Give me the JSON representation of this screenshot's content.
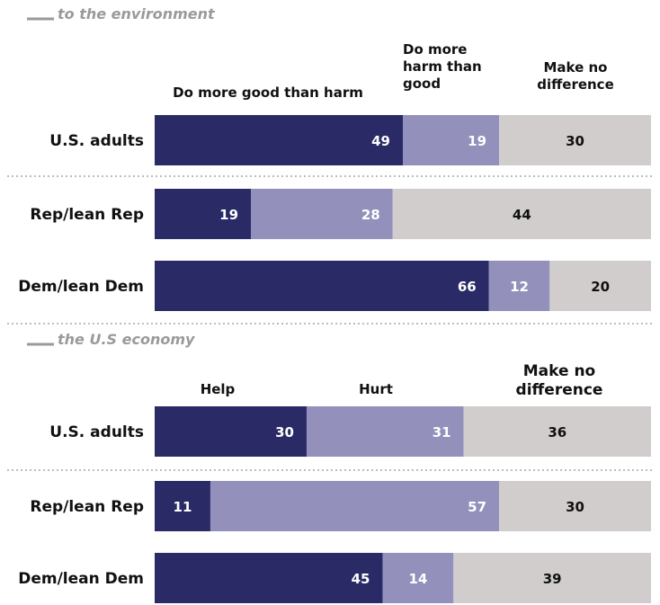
{
  "chart_data": [
    {
      "type": "bar",
      "orientation": "horizontal",
      "stacked": true,
      "title": "to the environment",
      "categories": [
        "U.S. adults",
        "Rep/lean Rep",
        "Dem/lean Dem"
      ],
      "series": [
        {
          "name": "Do more good than harm",
          "values": [
            49,
            19,
            66
          ],
          "color": "#2a2a66"
        },
        {
          "name": "Do more harm than good",
          "values": [
            19,
            28,
            12
          ],
          "color": "#9390bb"
        },
        {
          "name": "Make no difference",
          "values": [
            30,
            44,
            20
          ],
          "color": "#d1cdcd"
        }
      ],
      "xlim": [
        0,
        100
      ]
    },
    {
      "type": "bar",
      "orientation": "horizontal",
      "stacked": true,
      "title": "the U.S economy",
      "categories": [
        "U.S. adults",
        "Rep/lean Rep",
        "Dem/lean Dem"
      ],
      "series": [
        {
          "name": "Help",
          "values": [
            30,
            11,
            45
          ],
          "color": "#2a2a66"
        },
        {
          "name": "Hurt",
          "values": [
            31,
            57,
            14
          ],
          "color": "#9390bb"
        },
        {
          "name": "Make no difference",
          "values": [
            36,
            30,
            39
          ],
          "color": "#d1cdcd"
        }
      ],
      "xlim": [
        0,
        100
      ]
    }
  ]
}
